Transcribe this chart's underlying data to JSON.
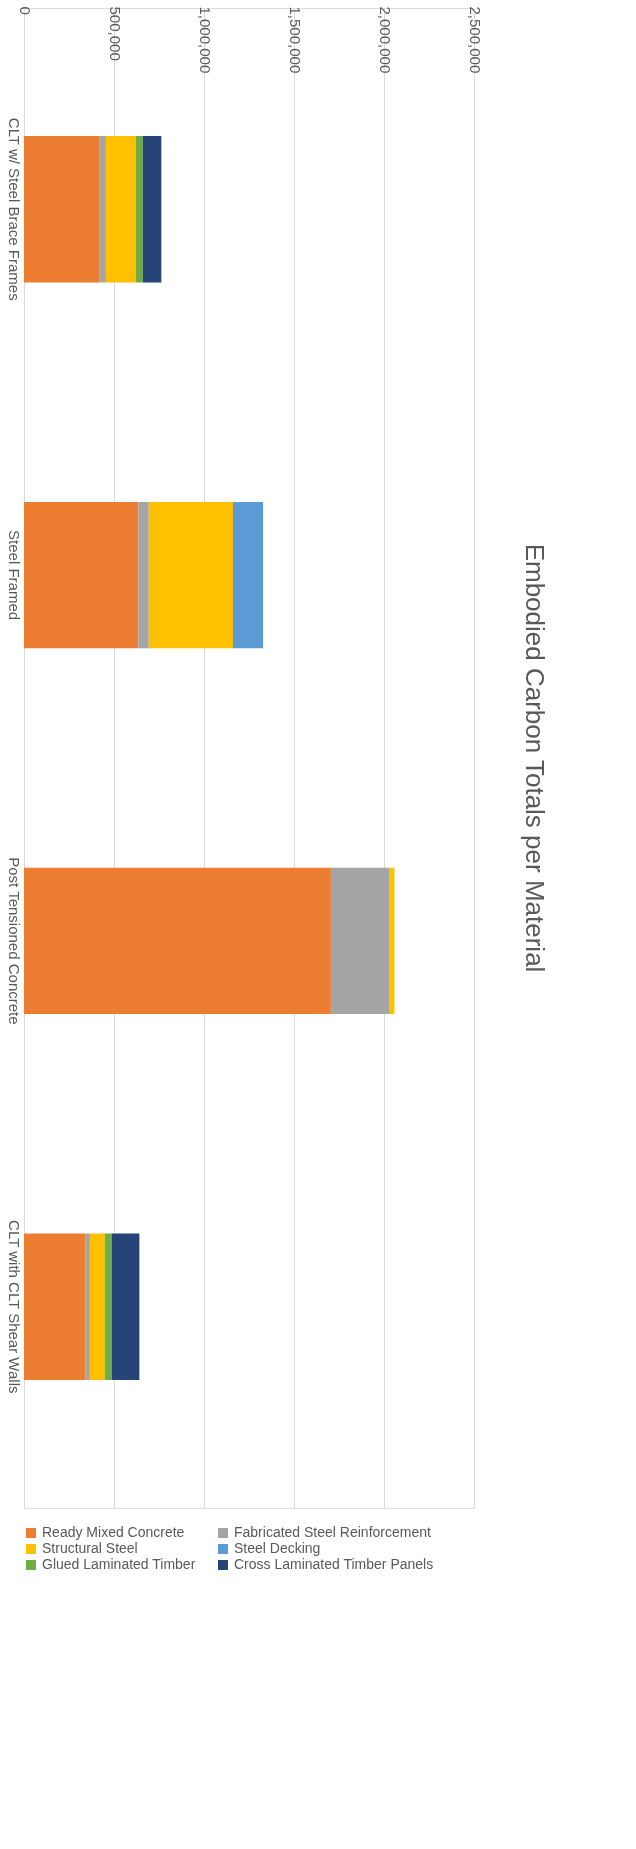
{
  "chart_data": {
    "type": "bar",
    "orientation": "horizontal",
    "stacked": true,
    "title": "Embodied Carbon Totals per Material",
    "categories": [
      "CLT w/ Steel Brace Frames",
      "Steel Framed",
      "Post Tensioned Concrete",
      "CLT with CLT Shear Walls"
    ],
    "series": [
      {
        "name": "Ready Mixed Concrete",
        "color": "#ed7d31",
        "values": [
          417000,
          635000,
          1705000,
          340000
        ]
      },
      {
        "name": "Fabricated Steel Reinforcement",
        "color": "#a5a5a5",
        "values": [
          38000,
          58000,
          327000,
          26000
        ]
      },
      {
        "name": "Structural Steel",
        "color": "#ffc000",
        "values": [
          167000,
          468000,
          26000,
          83000
        ]
      },
      {
        "name": "Steel Decking",
        "color": "#5b9bd5",
        "values": [
          null,
          167000,
          null,
          null
        ]
      },
      {
        "name": "Glued Laminated Timber",
        "color": "#70ad47",
        "values": [
          38000,
          null,
          null,
          38000
        ]
      },
      {
        "name": "Cross Laminated Timber Panels",
        "color": "#264478",
        "values": [
          103000,
          null,
          null,
          154000
        ]
      }
    ],
    "xlim": [
      0,
      2500000
    ],
    "xticks": [
      {
        "value": 0,
        "label": "0"
      },
      {
        "value": 500000,
        "label": "500,000"
      },
      {
        "value": 1000000,
        "label": "1,000,000"
      },
      {
        "value": 1500000,
        "label": "1,500,000"
      },
      {
        "value": 2000000,
        "label": "2,000,000"
      },
      {
        "value": 2500000,
        "label": "2,500,000"
      }
    ],
    "grid": "x",
    "legend": "bottom"
  }
}
